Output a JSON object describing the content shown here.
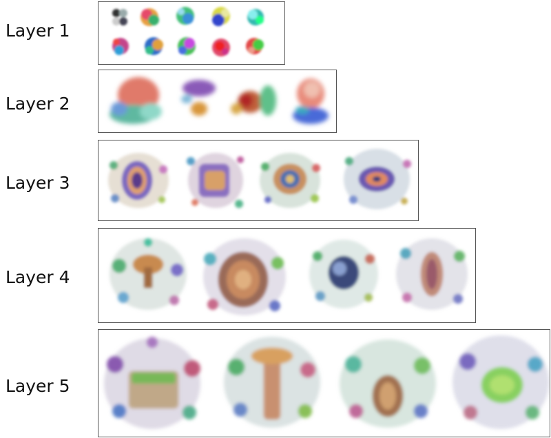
{
  "rows": [
    {
      "label": "Layer 1"
    },
    {
      "label": "Layer 2"
    },
    {
      "label": "Layer 3"
    },
    {
      "label": "Layer 4"
    },
    {
      "label": "Layer 5"
    }
  ]
}
